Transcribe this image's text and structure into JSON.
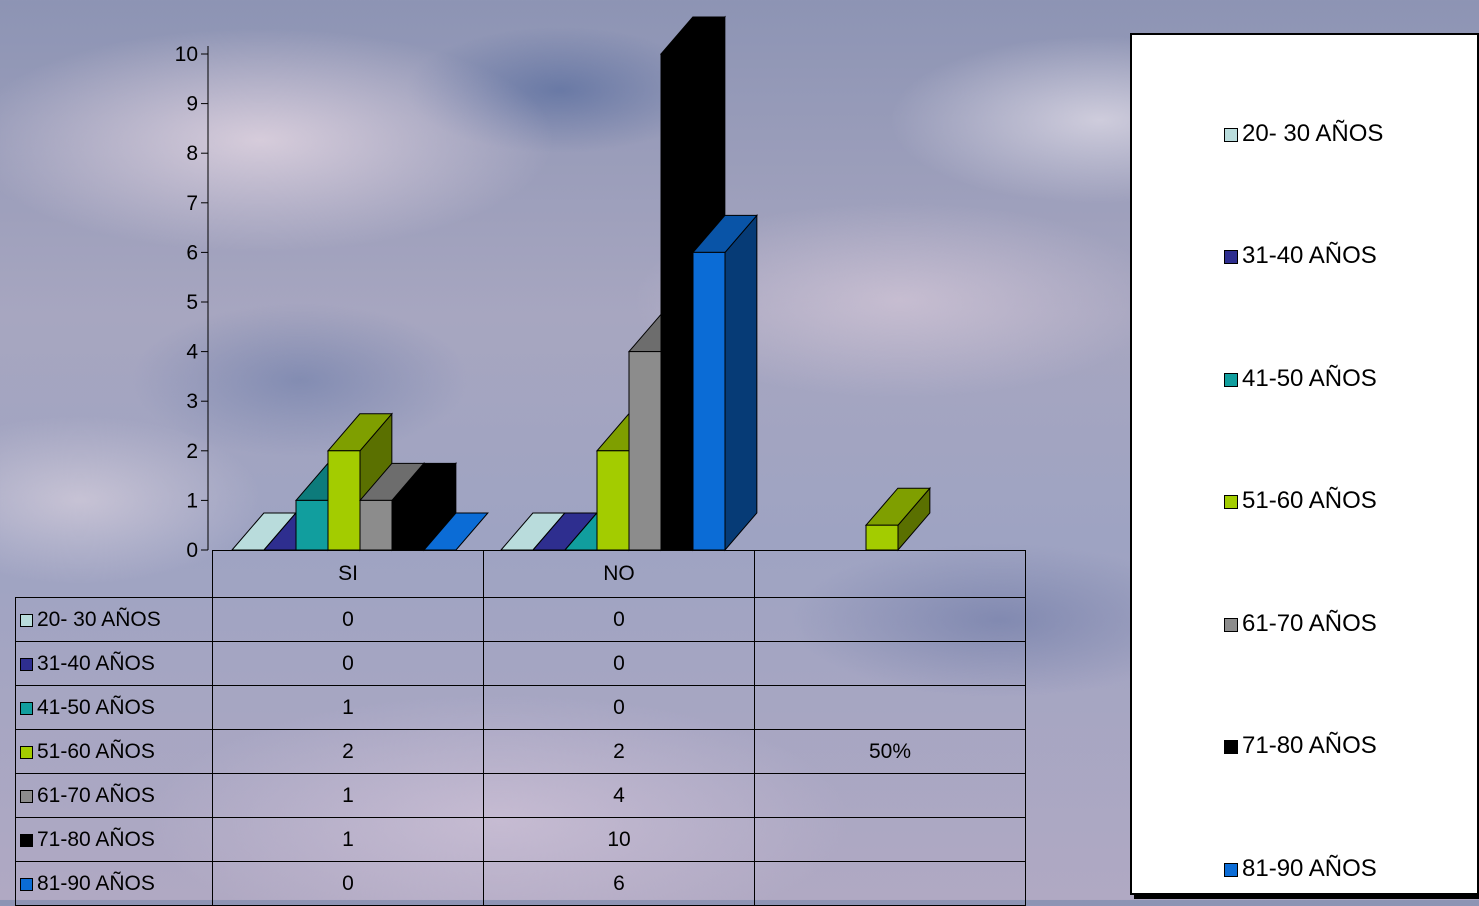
{
  "chart_data": {
    "type": "bar",
    "categories": [
      "SI",
      "NO",
      ""
    ],
    "yticks": [
      "0",
      "1",
      "2",
      "3",
      "4",
      "5",
      "6",
      "7",
      "8",
      "9",
      "10"
    ],
    "ylim": [
      0,
      10
    ],
    "grid": false,
    "legend_position": "right",
    "series": [
      {
        "name": "20- 30 AÑOS",
        "color": "#b9dcdc",
        "values": [
          0,
          0,
          null
        ]
      },
      {
        "name": "31-40 AÑOS",
        "color": "#2e2e8f",
        "values": [
          0,
          0,
          null
        ]
      },
      {
        "name": "41-50 AÑOS",
        "color": "#119e9e",
        "values": [
          1,
          0,
          null
        ]
      },
      {
        "name": "51-60 AÑOS",
        "color": "#a3cc00",
        "values": [
          2,
          2,
          0.5
        ]
      },
      {
        "name": "61-70 AÑOS",
        "color": "#8c8c8c",
        "values": [
          1,
          4,
          null
        ]
      },
      {
        "name": "71-80 AÑOS",
        "color": "#000000",
        "values": [
          1,
          10,
          null
        ]
      },
      {
        "name": "81-90 AÑOS",
        "color": "#0b6cd6",
        "values": [
          0,
          6,
          null
        ]
      }
    ],
    "table_rows": [
      {
        "label": "20- 30 AÑOS",
        "cells": [
          "0",
          "0",
          ""
        ]
      },
      {
        "label": "31-40 AÑOS",
        "cells": [
          "0",
          "0",
          ""
        ]
      },
      {
        "label": "41-50 AÑOS",
        "cells": [
          "1",
          "0",
          ""
        ]
      },
      {
        "label": "51-60 AÑOS",
        "cells": [
          "2",
          "2",
          "50%"
        ]
      },
      {
        "label": "61-70 AÑOS",
        "cells": [
          "1",
          "4",
          ""
        ]
      },
      {
        "label": "71-80 AÑOS",
        "cells": [
          "1",
          "10",
          ""
        ]
      },
      {
        "label": "81-90 AÑOS",
        "cells": [
          "0",
          "6",
          ""
        ]
      }
    ]
  }
}
